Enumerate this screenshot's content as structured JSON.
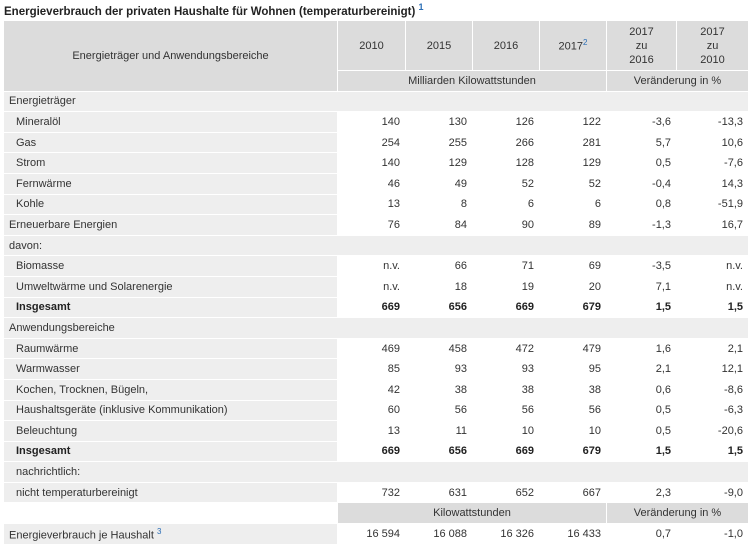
{
  "title": "Energieverbrauch der privaten Haushalte für Wohnen (temperaturbereinigt)",
  "title_note": "1",
  "header": {
    "label_col": "Energieträger und Anwendungsbereiche",
    "years": [
      "2010",
      "2015",
      "2016",
      "2017"
    ],
    "year_2017_note": "2",
    "cmp1": [
      "2017",
      "zu",
      "2016"
    ],
    "cmp2": [
      "2017",
      "zu",
      "2010"
    ],
    "unit_values": "Milliarden Kilowattstunden",
    "unit_change": "Veränderung in %"
  },
  "rows": [
    {
      "type": "section",
      "label": "Energieträger"
    },
    {
      "type": "data",
      "label": "Mineralöl",
      "indent": true,
      "values": [
        "140",
        "130",
        "126",
        "122",
        "-3,6",
        "-13,3"
      ]
    },
    {
      "type": "data",
      "label": "Gas",
      "indent": true,
      "values": [
        "254",
        "255",
        "266",
        "281",
        "5,7",
        "10,6"
      ]
    },
    {
      "type": "data",
      "label": "Strom",
      "indent": true,
      "values": [
        "140",
        "129",
        "128",
        "129",
        "0,5",
        "-7,6"
      ]
    },
    {
      "type": "data",
      "label": "Fernwärme",
      "indent": true,
      "values": [
        "46",
        "49",
        "52",
        "52",
        "-0,4",
        "14,3"
      ]
    },
    {
      "type": "data",
      "label": "Kohle",
      "indent": true,
      "values": [
        "13",
        "8",
        "6",
        "6",
        "0,8",
        "-51,9"
      ]
    },
    {
      "type": "data",
      "label": "Erneuerbare Energien",
      "indent": false,
      "values": [
        "76",
        "84",
        "90",
        "89",
        "-1,3",
        "16,7"
      ]
    },
    {
      "type": "section",
      "label": "davon:"
    },
    {
      "type": "data",
      "label": "Biomasse",
      "indent": true,
      "values": [
        "n.v.",
        "66",
        "71",
        "69",
        "-3,5",
        "n.v."
      ]
    },
    {
      "type": "data",
      "label": "Umweltwärme und Solarenergie",
      "indent": true,
      "values": [
        "n.v.",
        "18",
        "19",
        "20",
        "7,1",
        "n.v."
      ]
    },
    {
      "type": "total",
      "label": "Insgesamt",
      "indent": true,
      "values": [
        "669",
        "656",
        "669",
        "679",
        "1,5",
        "1,5"
      ]
    },
    {
      "type": "section",
      "label": "Anwendungsbereiche"
    },
    {
      "type": "data",
      "label": "Raumwärme",
      "indent": true,
      "values": [
        "469",
        "458",
        "472",
        "479",
        "1,6",
        "2,1"
      ]
    },
    {
      "type": "data",
      "label": "Warmwasser",
      "indent": true,
      "values": [
        "85",
        "93",
        "93",
        "95",
        "2,1",
        "12,1"
      ]
    },
    {
      "type": "data",
      "label": "Kochen, Trocknen, Bügeln,",
      "indent": true,
      "values": [
        "42",
        "38",
        "38",
        "38",
        "0,6",
        "-8,6"
      ]
    },
    {
      "type": "data",
      "label": "Haushaltsgeräte (inklusive Kommunikation)",
      "indent": true,
      "values": [
        "60",
        "56",
        "56",
        "56",
        "0,5",
        "-6,3"
      ]
    },
    {
      "type": "data",
      "label": "Beleuchtung",
      "indent": true,
      "values": [
        "13",
        "11",
        "10",
        "10",
        "0,5",
        "-20,6"
      ]
    },
    {
      "type": "total",
      "label": "Insgesamt",
      "indent": true,
      "values": [
        "669",
        "656",
        "669",
        "679",
        "1,5",
        "1,5"
      ]
    },
    {
      "type": "section",
      "label": "nachrichtlich:",
      "indent": true
    },
    {
      "type": "data",
      "label": "nicht temperaturbereinigt",
      "indent": true,
      "values": [
        "732",
        "631",
        "652",
        "667",
        "2,3",
        "-9,0"
      ]
    }
  ],
  "household": {
    "unit_values": "Kilowattstunden",
    "unit_change": "Veränderung in %",
    "label": "Energieverbrauch je Haushalt",
    "label_note": "3",
    "values": [
      "16 594",
      "16 088",
      "16 326",
      "16 433",
      "0,7",
      "-1,0"
    ]
  }
}
